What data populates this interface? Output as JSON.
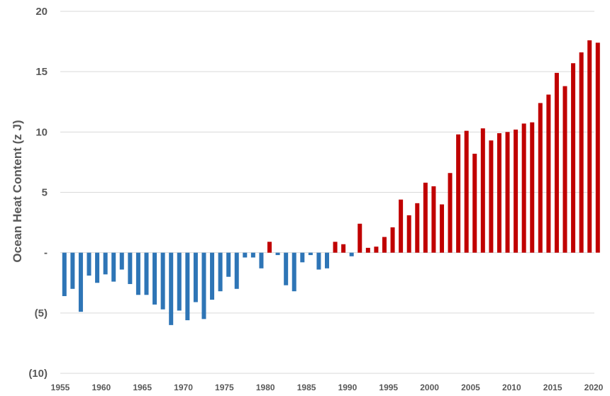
{
  "chart_data": {
    "type": "bar",
    "ylabel": "Ocean Heat Content  (z J)",
    "ylim": [
      -10,
      20
    ],
    "y_ticks": [
      {
        "value": 20,
        "label": "20"
      },
      {
        "value": 15,
        "label": "15"
      },
      {
        "value": 10,
        "label": "10"
      },
      {
        "value": 5,
        "label": "5"
      },
      {
        "value": 0,
        "label": "-"
      },
      {
        "value": -5,
        "label": "(5)"
      },
      {
        "value": -10,
        "label": "(10)"
      }
    ],
    "x_ticks": [
      "1955",
      "1960",
      "1965",
      "1970",
      "1975",
      "1980",
      "1985",
      "1990",
      "1995",
      "2000",
      "2005",
      "2010",
      "2015",
      "2020"
    ],
    "xlim": [
      1955,
      2020
    ],
    "grid": "horizontal",
    "colors": {
      "negative": "#2e75b6",
      "positive": "#c00000",
      "grid": "#d9d9d9",
      "text": "#595959"
    },
    "x": [
      1955,
      1956,
      1957,
      1958,
      1959,
      1960,
      1961,
      1962,
      1963,
      1964,
      1965,
      1966,
      1967,
      1968,
      1969,
      1970,
      1971,
      1972,
      1973,
      1974,
      1975,
      1976,
      1977,
      1978,
      1979,
      1980,
      1981,
      1982,
      1983,
      1984,
      1985,
      1986,
      1987,
      1988,
      1989,
      1990,
      1991,
      1992,
      1993,
      1994,
      1995,
      1996,
      1997,
      1998,
      1999,
      2000,
      2001,
      2002,
      2003,
      2004,
      2005,
      2006,
      2007,
      2008,
      2009,
      2010,
      2011,
      2012,
      2013,
      2014,
      2015,
      2016,
      2017,
      2018,
      2019,
      2020
    ],
    "values": [
      -3.6,
      -3.0,
      -4.9,
      -1.9,
      -2.5,
      -1.8,
      -2.4,
      -1.4,
      -2.6,
      -3.5,
      -3.5,
      -4.3,
      -4.7,
      -6.0,
      -4.8,
      -5.6,
      -4.1,
      -5.5,
      -3.9,
      -3.2,
      -2.0,
      -3.0,
      -0.4,
      -0.4,
      -1.3,
      0.9,
      -0.2,
      -2.7,
      -3.2,
      -0.8,
      -0.2,
      -1.4,
      -1.3,
      0.9,
      0.7,
      -0.3,
      2.4,
      0.4,
      0.5,
      1.3,
      2.1,
      4.4,
      3.1,
      4.1,
      5.8,
      5.5,
      4.0,
      6.6,
      9.8,
      10.1,
      8.2,
      10.3,
      9.3,
      9.9,
      10.0,
      10.2,
      10.7,
      10.8,
      12.4,
      13.1,
      14.9,
      13.8,
      15.7,
      16.6,
      17.6,
      17.4
    ]
  }
}
